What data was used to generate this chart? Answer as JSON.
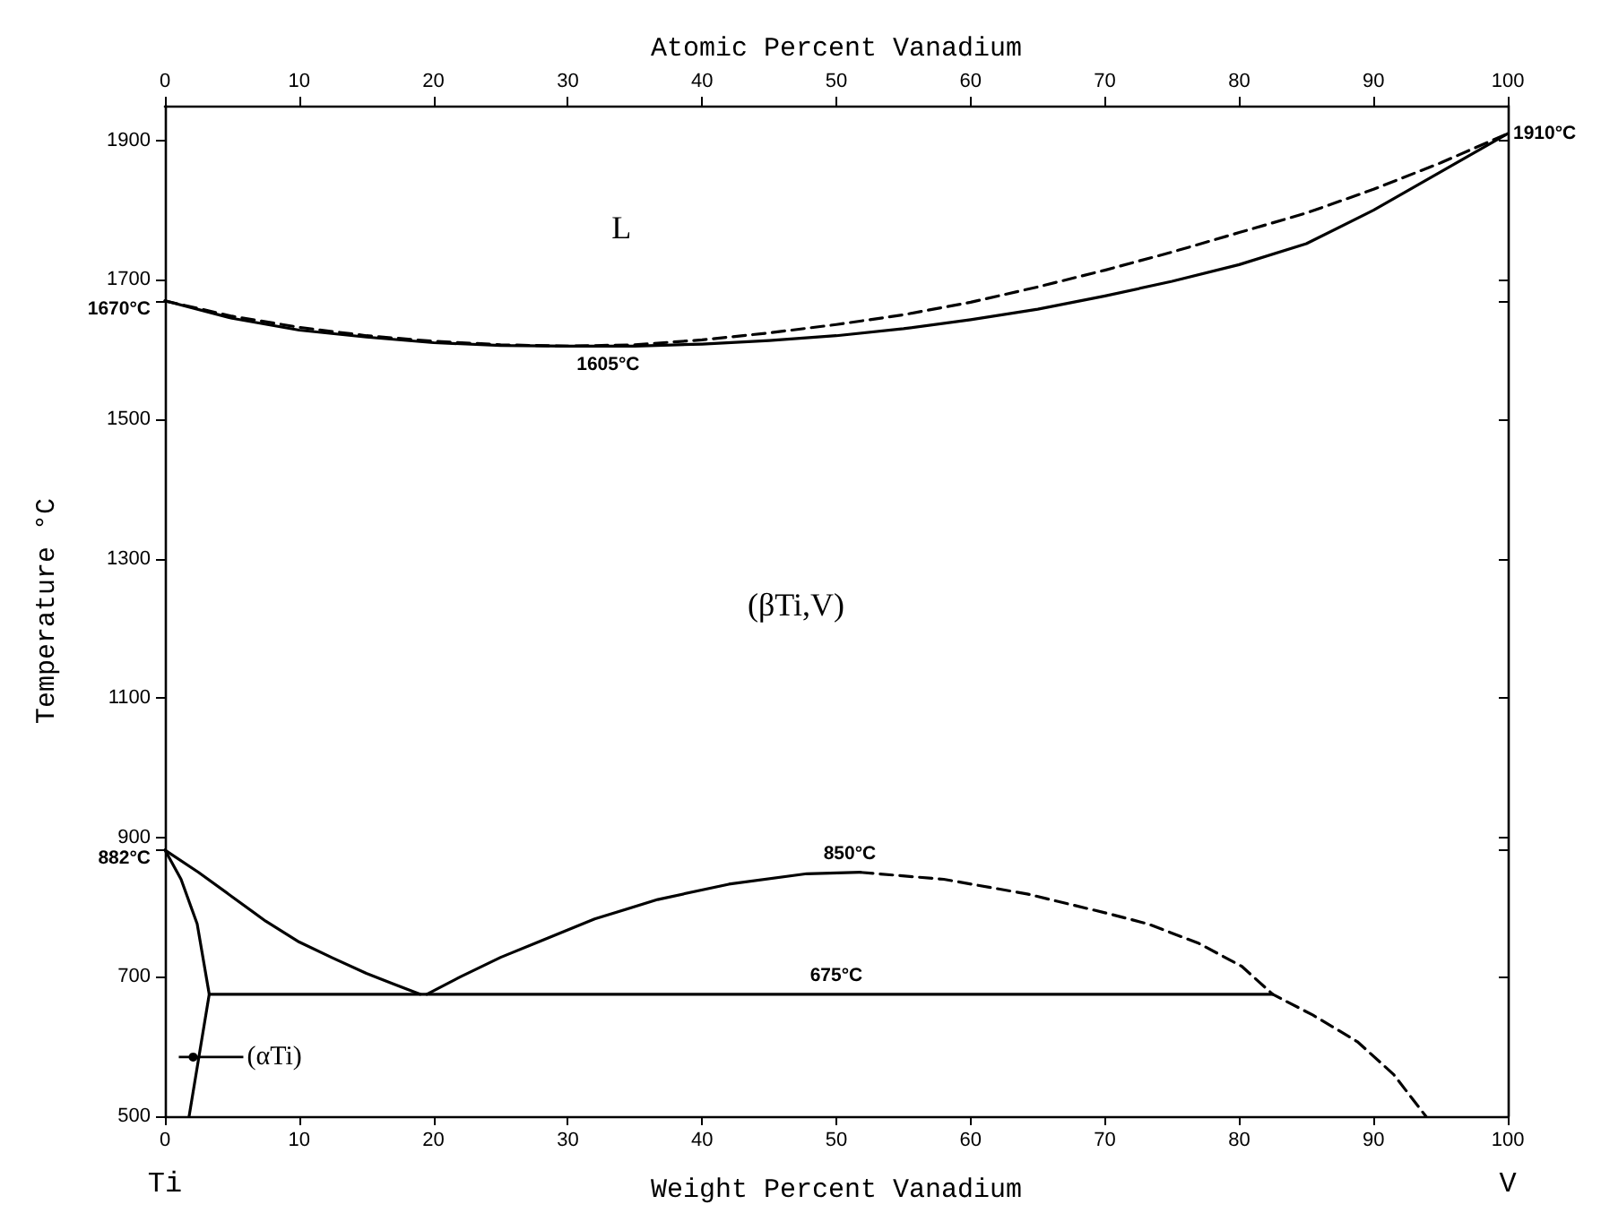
{
  "chart_data": {
    "type": "line",
    "xlabel": "Weight Percent Vanadium",
    "x2label": "Atomic Percent Vanadium",
    "ylabel": "Temperature °C",
    "xlim": [
      0,
      100
    ],
    "xticks": [
      0,
      10,
      20,
      30,
      40,
      50,
      60,
      70,
      80,
      90,
      100
    ],
    "x2lim": [
      0,
      100
    ],
    "x2ticks": [
      0,
      10,
      20,
      30,
      40,
      50,
      60,
      70,
      80,
      90,
      100
    ],
    "ylim": [
      500,
      1950
    ],
    "yticks": [
      500,
      700,
      {
        "value": 882,
        "label": "882°C"
      },
      900,
      1100,
      1300,
      1500,
      {
        "value": 1670,
        "label": "1670°C"
      },
      1700,
      1900
    ],
    "marker": "none",
    "series": [
      {
        "color": "#000000",
        "line_style": "dashed",
        "x": [
          0,
          5,
          10,
          15,
          20,
          25,
          30,
          35,
          40,
          45,
          50,
          55,
          60,
          65,
          70,
          75,
          80,
          85,
          90,
          95,
          100
        ],
        "values": [
          1670,
          1648,
          1632,
          1620,
          1612,
          1607,
          1605,
          1607,
          1614,
          1624,
          1636,
          1650,
          1668,
          1690,
          1714,
          1740,
          1768,
          1796,
          1830,
          1868,
          1910
        ]
      },
      {
        "color": "#000000",
        "line_style": "solid",
        "x": [
          0,
          5,
          10,
          15,
          20,
          25,
          30,
          35,
          40,
          45,
          50,
          55,
          60,
          65,
          70,
          75,
          80,
          85,
          90,
          95,
          100
        ],
        "values": [
          1670,
          1645,
          1628,
          1618,
          1610,
          1606,
          1605,
          1605,
          1608,
          1613,
          1620,
          1630,
          1643,
          1658,
          1677,
          1698,
          1722,
          1752,
          1800,
          1855,
          1910
        ]
      },
      {
        "color": "#000000",
        "line_style": "solid",
        "x": [
          0,
          2.5,
          5,
          7.5,
          10,
          12.5,
          15,
          17,
          19
        ],
        "values": [
          882,
          850,
          815,
          780,
          750,
          727,
          705,
          690,
          675
        ]
      },
      {
        "color": "#000000",
        "line_style": "solid",
        "x": [
          19.5,
          22,
          25,
          27.8,
          32,
          36.7,
          42,
          47.8,
          51.8
        ],
        "values": [
          675,
          700,
          728,
          750,
          783,
          811,
          833,
          848,
          850
        ]
      },
      {
        "color": "#000000",
        "line_style": "dashed",
        "x": [
          51.8,
          58,
          64.2,
          70,
          73.2,
          77,
          80.2,
          82.5,
          85.5,
          88.8,
          91.5,
          93.9
        ],
        "values": [
          850,
          840,
          819,
          792,
          776,
          748,
          715,
          675,
          645,
          607,
          560,
          500
        ]
      },
      {
        "color": "#000000",
        "line_style": "solid",
        "x": [
          3.3,
          82.5
        ],
        "values": [
          675,
          675
        ]
      },
      {
        "color": "#000000",
        "line_style": "solid",
        "x": [
          0,
          1.2,
          2.4,
          3.3,
          1.8
        ],
        "values": [
          882,
          840,
          776,
          675,
          500
        ]
      }
    ],
    "annotations": [
      "L",
      {
        "text": "1910°C",
        "x": 100,
        "y": 1910
      },
      {
        "text": "1605°C",
        "x": 33,
        "y": 1605
      },
      "(βTi,V)",
      {
        "text": "850°C",
        "x": 51,
        "y": 850
      },
      {
        "text": "675°C",
        "x": 50,
        "y": 675
      },
      {
        "text": "(αTi)",
        "x": 2.1,
        "y": 585
      },
      "Ti",
      "V"
    ]
  }
}
